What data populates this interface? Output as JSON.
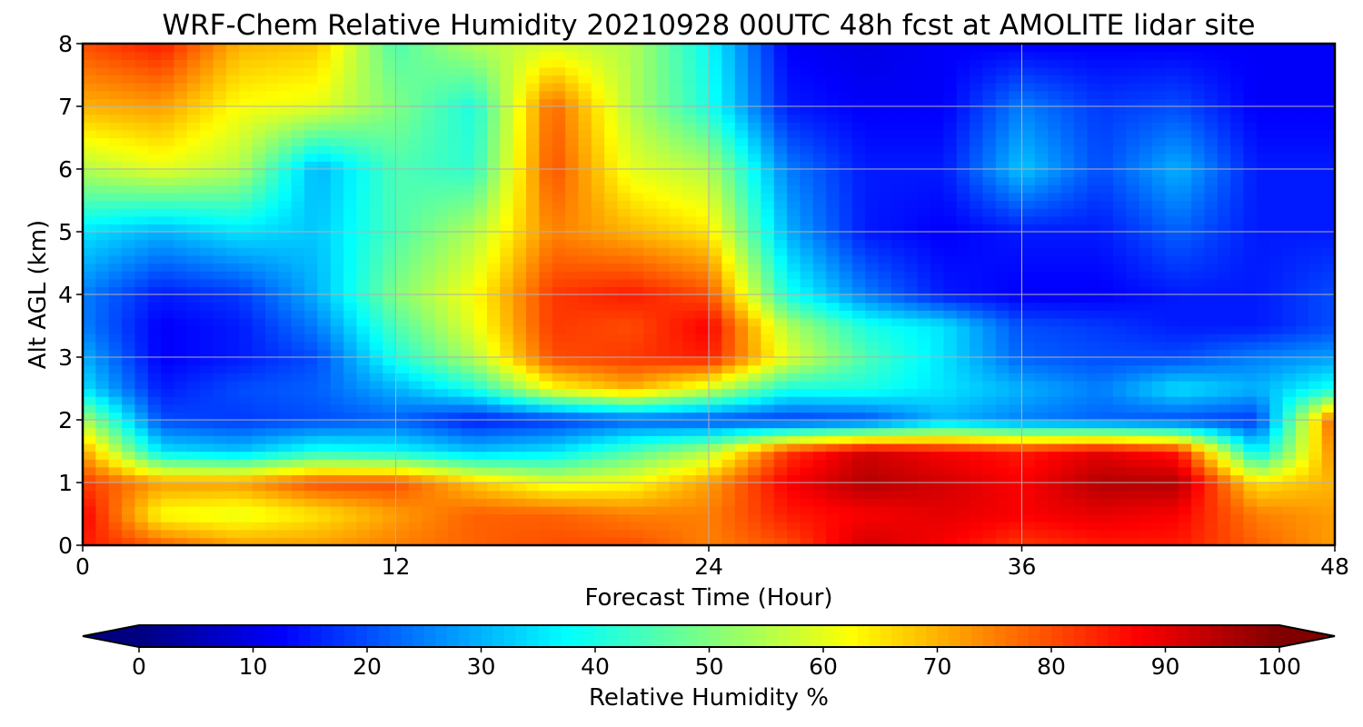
{
  "chart_data": {
    "type": "heatmap",
    "title": "WRF-Chem Relative Humidity 20210928 00UTC 48h fcst at AMOLITE lidar site",
    "xlabel": "Forecast Time (Hour)",
    "ylabel": "Alt AGL (km)",
    "xlim": [
      0,
      48
    ],
    "ylim": [
      0,
      8
    ],
    "xticks": [
      0,
      12,
      24,
      36,
      48
    ],
    "yticks": [
      0,
      1,
      2,
      3,
      4,
      5,
      6,
      7,
      8
    ],
    "grid": true,
    "colormap": "jet",
    "colorbar": {
      "label": "Relative Humidity %",
      "ticks": [
        0,
        10,
        20,
        30,
        40,
        50,
        60,
        70,
        80,
        90,
        100
      ],
      "range": [
        0,
        100
      ],
      "extend": "both",
      "orientation": "horizontal"
    },
    "x": [
      0,
      3,
      6,
      9,
      12,
      15,
      18,
      21,
      24,
      27,
      30,
      33,
      36,
      39,
      42,
      45,
      48
    ],
    "y": [
      0,
      0.5,
      1,
      1.5,
      2,
      2.5,
      3,
      3.5,
      4,
      5,
      6,
      7,
      8
    ],
    "z": [
      [
        85,
        78,
        72,
        72,
        75,
        78,
        80,
        80,
        75,
        80,
        92,
        88,
        82,
        85,
        85,
        78,
        72
      ],
      [
        88,
        62,
        60,
        65,
        72,
        78,
        78,
        75,
        75,
        85,
        88,
        90,
        88,
        90,
        88,
        75,
        72
      ],
      [
        82,
        72,
        72,
        80,
        80,
        68,
        60,
        62,
        72,
        88,
        95,
        92,
        88,
        95,
        95,
        65,
        70
      ],
      [
        72,
        35,
        32,
        40,
        38,
        32,
        35,
        45,
        55,
        82,
        92,
        88,
        85,
        90,
        85,
        35,
        75
      ],
      [
        55,
        20,
        18,
        20,
        22,
        15,
        18,
        22,
        20,
        18,
        20,
        30,
        25,
        22,
        20,
        18,
        80
      ],
      [
        35,
        15,
        20,
        22,
        30,
        40,
        62,
        70,
        58,
        40,
        40,
        35,
        30,
        25,
        35,
        30,
        40
      ],
      [
        30,
        12,
        15,
        20,
        40,
        55,
        80,
        82,
        85,
        60,
        45,
        35,
        22,
        20,
        20,
        25,
        28
      ],
      [
        25,
        12,
        15,
        25,
        45,
        60,
        82,
        80,
        88,
        55,
        40,
        35,
        20,
        18,
        15,
        15,
        20
      ],
      [
        25,
        15,
        18,
        30,
        50,
        62,
        82,
        85,
        80,
        40,
        25,
        15,
        12,
        12,
        15,
        15,
        20
      ],
      [
        35,
        30,
        35,
        32,
        45,
        55,
        75,
        70,
        65,
        30,
        15,
        12,
        15,
        15,
        22,
        15,
        15
      ],
      [
        55,
        60,
        55,
        30,
        45,
        42,
        80,
        60,
        55,
        25,
        15,
        15,
        32,
        20,
        30,
        15,
        15
      ],
      [
        70,
        72,
        62,
        60,
        50,
        40,
        78,
        55,
        40,
        15,
        12,
        12,
        25,
        18,
        20,
        12,
        12
      ],
      [
        80,
        85,
        70,
        68,
        45,
        55,
        58,
        55,
        38,
        12,
        10,
        12,
        12,
        12,
        12,
        12,
        12
      ]
    ]
  }
}
